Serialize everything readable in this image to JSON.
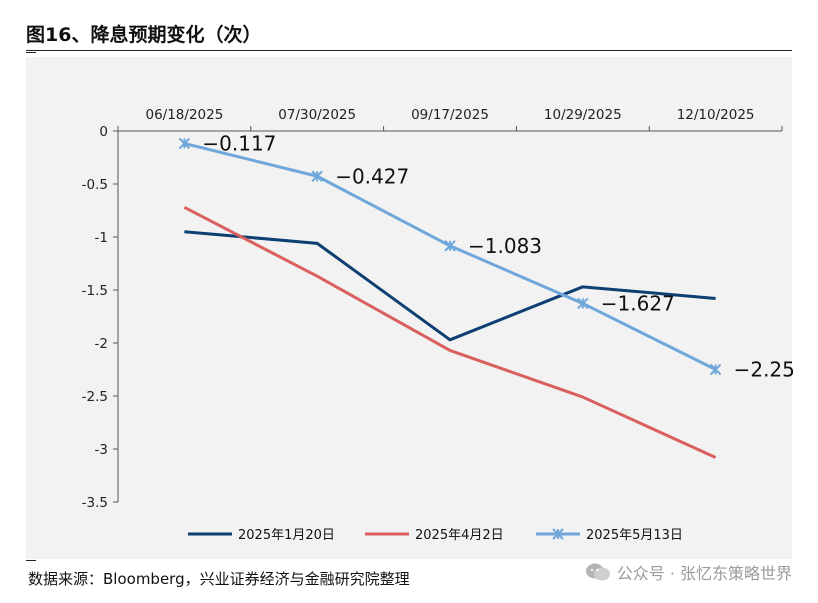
{
  "title": "图16、降息预期变化（次）",
  "source": "数据来源：Bloomberg，兴业证券经济与金融研究院整理",
  "watermark": "公众号 · 张忆东策略世界",
  "chart_data": {
    "type": "line",
    "x": [
      "06/18/2025",
      "07/30/2025",
      "09/17/2025",
      "10/29/2025",
      "12/10/2025"
    ],
    "ylim": [
      -3.5,
      0
    ],
    "yticks": [
      "0",
      "-0.5",
      "-1",
      "-1.5",
      "-2",
      "-2.5",
      "-3",
      "-3.5"
    ],
    "grid": false,
    "legend": "bottom",
    "series": [
      {
        "name": "2025年1月20日",
        "values": [
          -0.95,
          -1.06,
          -1.97,
          -1.47,
          -1.58
        ],
        "color": "#0e3f73",
        "marker": "none"
      },
      {
        "name": "2025年4月2日",
        "values": [
          -0.72,
          -1.37,
          -2.07,
          -2.51,
          -3.08
        ],
        "color": "#d9605e",
        "marker": "none"
      },
      {
        "name": "2025年5月13日",
        "values": [
          -0.117,
          -0.427,
          -1.083,
          -1.627,
          -2.25
        ],
        "color": "#6fa7da",
        "marker": "asterisk",
        "labels": [
          "−0.117",
          "−0.427",
          "−1.083",
          "−1.627",
          "−2.25"
        ]
      }
    ]
  }
}
